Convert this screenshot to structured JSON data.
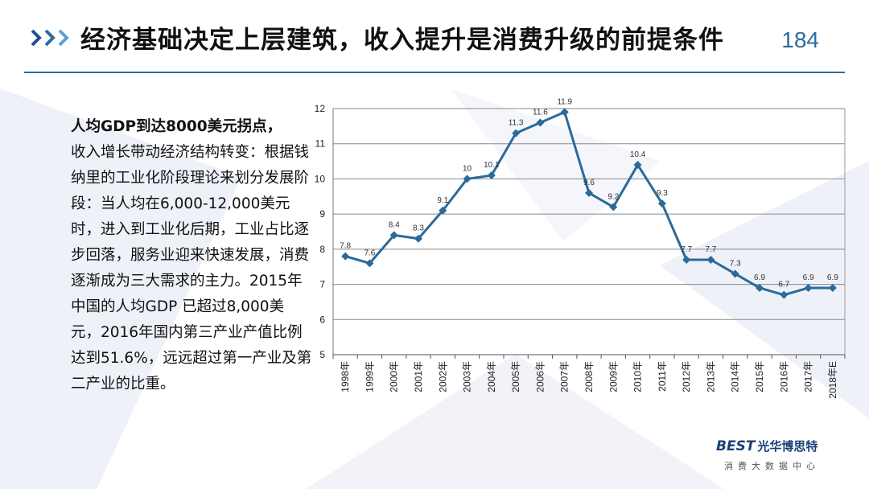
{
  "header": {
    "title": "经济基础决定上层建筑，收入提升是消费升级的前提条件",
    "page_number": "184"
  },
  "body_text": {
    "p1_bold": "人均GDP到达8000美元拐点，",
    "p2": "收入增长带动经济结构转变：根据钱纳里的工业化阶段理论来划分发展阶段：当人均在6,000-12,000美元时，进入到工业化后期，工业占比逐步回落，服务业迎来快速发展，消费逐渐成为三大需求的主力。2015年中国的人均GDP 已超过8,000美元，2016年国内第三产业产值比例达到51.6%，远远超过第一产业及第二产业的比重。"
  },
  "footer": {
    "logo_best": "BEST",
    "logo_cn": "光华博思特",
    "logo_sub": "消费大数据中心"
  },
  "colors": {
    "accent": "#2e6b9e",
    "series_line": "#2b6a9a"
  },
  "chart_data": {
    "type": "line",
    "categories": [
      "1998年",
      "1999年",
      "2000年",
      "2001年",
      "2002年",
      "2003年",
      "2004年",
      "2005年",
      "2006年",
      "2007年",
      "2008年",
      "2009年",
      "2010年",
      "2011年",
      "2012年",
      "2013年",
      "2014年",
      "2015年",
      "2016年",
      "2017年",
      "2018年E"
    ],
    "series": [
      {
        "values": [
          7.8,
          7.6,
          8.4,
          8.3,
          9.1,
          10,
          10.1,
          11.3,
          11.6,
          11.9,
          9.6,
          9.2,
          10.4,
          9.3,
          7.7,
          7.7,
          7.3,
          6.9,
          6.7,
          6.9,
          6.9
        ]
      }
    ],
    "ylim": [
      5,
      12
    ],
    "yticks": [
      5,
      6,
      7,
      8,
      9,
      10,
      11,
      12
    ],
    "grid": true,
    "markers": "diamond",
    "data_labels": true
  }
}
